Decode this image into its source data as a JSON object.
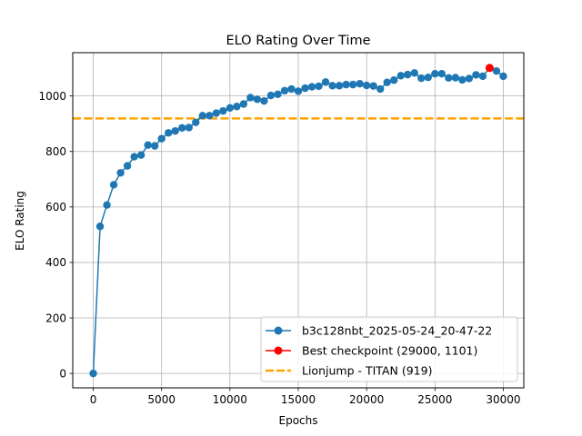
{
  "chart_data": {
    "type": "line",
    "title": "ELO Rating Over Time",
    "xlabel": "Epochs",
    "ylabel": "ELO Rating",
    "xlim": [
      -1500,
      31500
    ],
    "ylim": [
      -52,
      1156
    ],
    "xticks": [
      0,
      5000,
      10000,
      15000,
      20000,
      25000,
      30000
    ],
    "yticks": [
      0,
      200,
      400,
      600,
      800,
      1000
    ],
    "grid": true,
    "legend_position": "lower right",
    "series": [
      {
        "name": "b3c128nbt_2025-05-24_20-47-22",
        "color": "#1f77b4",
        "marker": "circle",
        "x": [
          0,
          500,
          1000,
          1500,
          2000,
          2500,
          3000,
          3500,
          4000,
          4500,
          5000,
          5500,
          6000,
          6500,
          7000,
          7500,
          8000,
          8500,
          9000,
          9500,
          10000,
          10500,
          11000,
          11500,
          12000,
          12500,
          13000,
          13500,
          14000,
          14500,
          15000,
          15500,
          16000,
          16500,
          17000,
          17500,
          18000,
          18500,
          19000,
          19500,
          20000,
          20500,
          21000,
          21500,
          22000,
          22500,
          23000,
          23500,
          24000,
          24500,
          25000,
          25500,
          26000,
          26500,
          27000,
          27500,
          28000,
          28500,
          29000,
          29500,
          30000
        ],
        "y": [
          0,
          530,
          607,
          680,
          723,
          748,
          781,
          787,
          823,
          820,
          846,
          867,
          874,
          885,
          886,
          905,
          929,
          929,
          938,
          946,
          957,
          962,
          971,
          994,
          988,
          982,
          1002,
          1006,
          1019,
          1025,
          1017,
          1028,
          1033,
          1035,
          1050,
          1037,
          1037,
          1041,
          1041,
          1044,
          1038,
          1036,
          1025,
          1049,
          1057,
          1073,
          1077,
          1083,
          1064,
          1067,
          1080,
          1080,
          1065,
          1066,
          1058,
          1063,
          1076,
          1071,
          1101,
          1090,
          1071
        ]
      },
      {
        "name": "Best checkpoint (29000, 1101)",
        "color": "#ff0000",
        "marker": "circle",
        "x": [
          29000
        ],
        "y": [
          1101
        ]
      },
      {
        "name": "Lionjump - TITAN (919)",
        "color": "#ffa500",
        "style": "dashed",
        "hline": 919
      }
    ]
  }
}
